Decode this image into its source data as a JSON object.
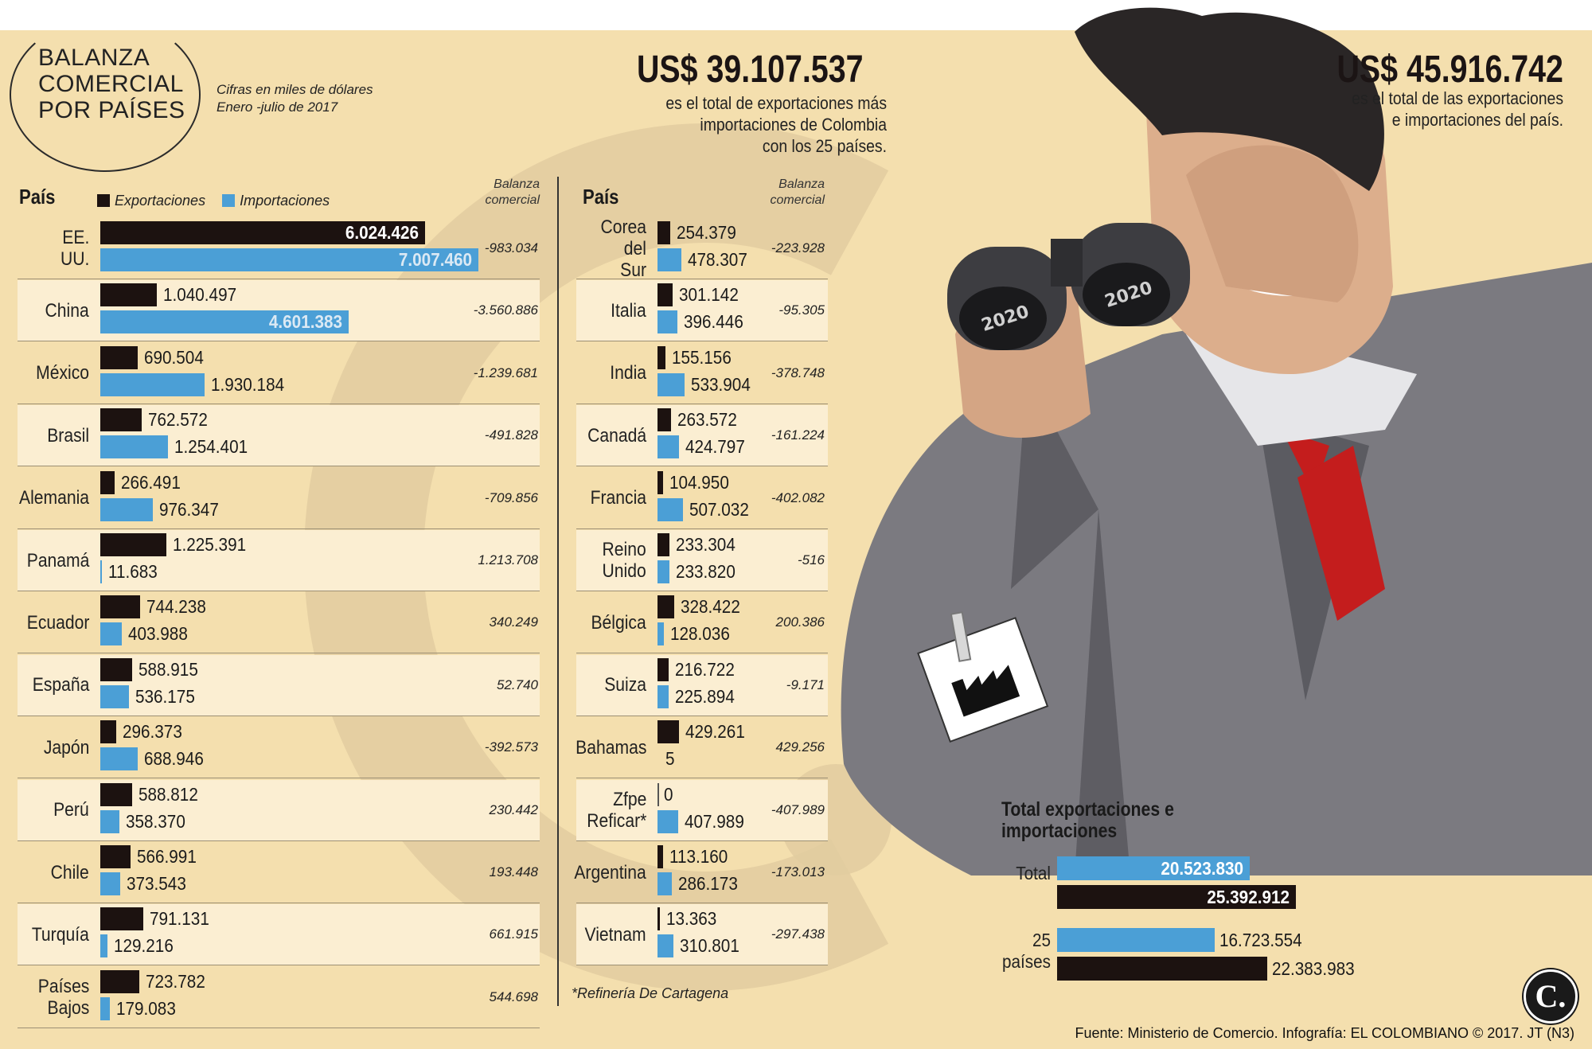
{
  "header": {
    "title_lines": [
      "BALANZA",
      "COMERCIAL",
      "POR PAÍSES"
    ],
    "subtitle_lines": [
      "Cifras en miles de dólares",
      "Enero -julio de 2017"
    ]
  },
  "totals": {
    "total_25": {
      "amount": "US$ 39.107.537",
      "text_lines": [
        "es el total de exportaciones más",
        "importaciones de Colombia",
        "con los 25 países."
      ]
    },
    "total_all": {
      "amount": "US$ 45.916.742",
      "text_lines": [
        "es el total de las exportaciones",
        "e importaciones del país."
      ]
    }
  },
  "columns": {
    "country_header": "País",
    "balance_header_lines": [
      "Balanza",
      "comercial"
    ]
  },
  "legend": {
    "exports": "Exportaciones",
    "imports": "Importaciones"
  },
  "colors": {
    "exports": "#1c1210",
    "imports": "#4b9fd6",
    "background": "#f4dfae",
    "row_highlight": "#fbeed2"
  },
  "chart_data": [
    {
      "type": "bar",
      "orientation": "horizontal",
      "series": [
        {
          "name": "Exportaciones",
          "values": [
            6024426,
            1040497,
            690504,
            762572,
            266491,
            1225391,
            744238,
            588915,
            296373,
            588812,
            566991,
            791131,
            723782
          ]
        },
        {
          "name": "Importaciones",
          "values": [
            7007460,
            4601383,
            1930184,
            1254401,
            976347,
            11683,
            403988,
            536175,
            688946,
            358370,
            373543,
            129216,
            179083
          ]
        }
      ],
      "categories": [
        "EE. UU.",
        "China",
        "México",
        "Brasil",
        "Alemania",
        "Panamá",
        "Ecuador",
        "España",
        "Japón",
        "Perú",
        "Chile",
        "Turquía",
        "Países Bajos"
      ],
      "balances": [
        "-983.034",
        "-3.560.886",
        "-1.239.681",
        "-491.828",
        "-709.856",
        "1.213.708",
        "340.249",
        "52.740",
        "-392.573",
        "230.442",
        "193.448",
        "661.915",
        "544.698"
      ],
      "export_labels": [
        "6.024.426",
        "1.040.497",
        "690.504",
        "762.572",
        "266.491",
        "1.225.391",
        "744.238",
        "588.915",
        "296.373",
        "588.812",
        "566.991",
        "791.131",
        "723.782"
      ],
      "import_labels": [
        "7.007.460",
        "4.601.383",
        "1.930.184",
        "1.254.401",
        "976.347",
        "11.683",
        "403.988",
        "536.175",
        "688.946",
        "358.370",
        "373.543",
        "129.216",
        "179.083"
      ]
    },
    {
      "type": "bar",
      "orientation": "horizontal",
      "series": [
        {
          "name": "Exportaciones",
          "values": [
            254379,
            301142,
            155156,
            263572,
            104950,
            233304,
            328422,
            216722,
            429261,
            0,
            113160,
            13363
          ]
        },
        {
          "name": "Importaciones",
          "values": [
            478307,
            396446,
            533904,
            424797,
            507032,
            233820,
            128036,
            225894,
            5,
            407989,
            286173,
            310801
          ]
        }
      ],
      "categories": [
        "Corea del Sur",
        "Italia",
        "India",
        "Canadá",
        "Francia",
        "Reino Unido",
        "Bélgica",
        "Suiza",
        "Bahamas",
        "Zfpe Reficar*",
        "Argentina",
        "Vietnam"
      ],
      "balances": [
        "-223.928",
        "-95.305",
        "-378.748",
        "-161.224",
        "-402.082",
        "-516",
        "200.386",
        "-9.171",
        "429.256",
        "-407.989",
        "-173.013",
        "-297.438"
      ],
      "export_labels": [
        "254.379",
        "301.142",
        "155.156",
        "263.572",
        "104.950",
        "233.304",
        "328.422",
        "216.722",
        "429.261",
        "0",
        "113.160",
        "13.363"
      ],
      "import_labels": [
        "478.307",
        "396.446",
        "533.904",
        "424.797",
        "507.032",
        "233.820",
        "128.036",
        "225.894",
        "5",
        "407.989",
        "286.173",
        "310.801"
      ]
    },
    {
      "type": "bar",
      "orientation": "horizontal",
      "title_lines": [
        "Total exportaciones e",
        "importaciones"
      ],
      "categories": [
        "Total",
        "25 países"
      ],
      "series": [
        {
          "values": [
            20523830,
            16723554
          ]
        },
        {
          "values": [
            25392912,
            22383983
          ]
        }
      ],
      "labels_first": [
        "20.523.830",
        "16.723.554"
      ],
      "labels_second": [
        "25.392.912",
        "22.383.983"
      ]
    }
  ],
  "footnote": "*Refinería De Cartagena",
  "source": "Fuente: Ministerio de Comercio. Infografía: EL COLOMBIANO © 2017. JT (N3)",
  "logo_text": "C."
}
